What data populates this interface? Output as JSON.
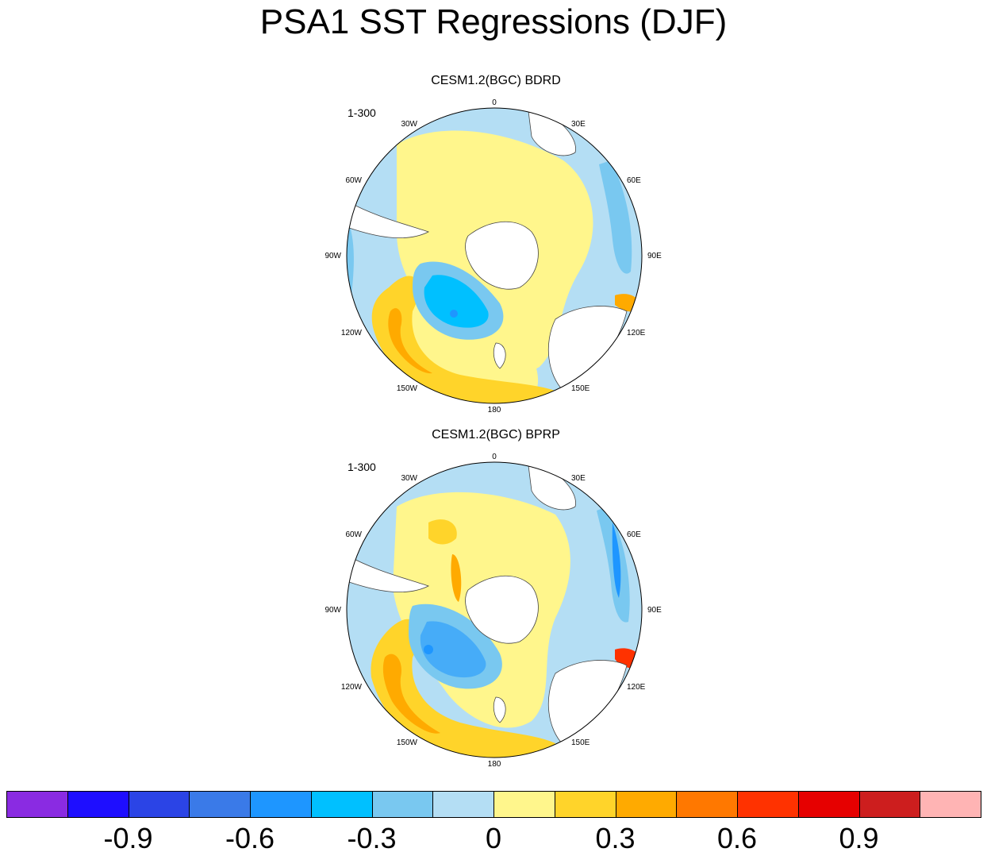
{
  "title": "PSA1 SST Regressions (DJF)",
  "panels": [
    {
      "id": "top",
      "subtitle": "CESM1.2(BGC) BDRD",
      "range_label": "1-300"
    },
    {
      "id": "bottom",
      "subtitle": "CESM1.2(BGC) BPRP",
      "range_label": "1-300"
    }
  ],
  "longitude_labels": [
    "0",
    "30E",
    "60E",
    "90E",
    "120E",
    "150E",
    "180",
    "150W",
    "120W",
    "90W",
    "60W",
    "30W"
  ],
  "colorbar": {
    "colors": [
      "#8a2be2",
      "#1e0eff",
      "#2b44e6",
      "#3a7ae8",
      "#1e96ff",
      "#00c0ff",
      "#79c8f0",
      "#b4def4",
      "#fff68c",
      "#ffd42a",
      "#ffaa00",
      "#ff7800",
      "#ff3200",
      "#e60000",
      "#cd1e1e",
      "#ffb4b4"
    ],
    "labels": [
      "-0.9",
      "-0.6",
      "-0.3",
      "0",
      "0.3",
      "0.6",
      "0.9"
    ]
  }
}
